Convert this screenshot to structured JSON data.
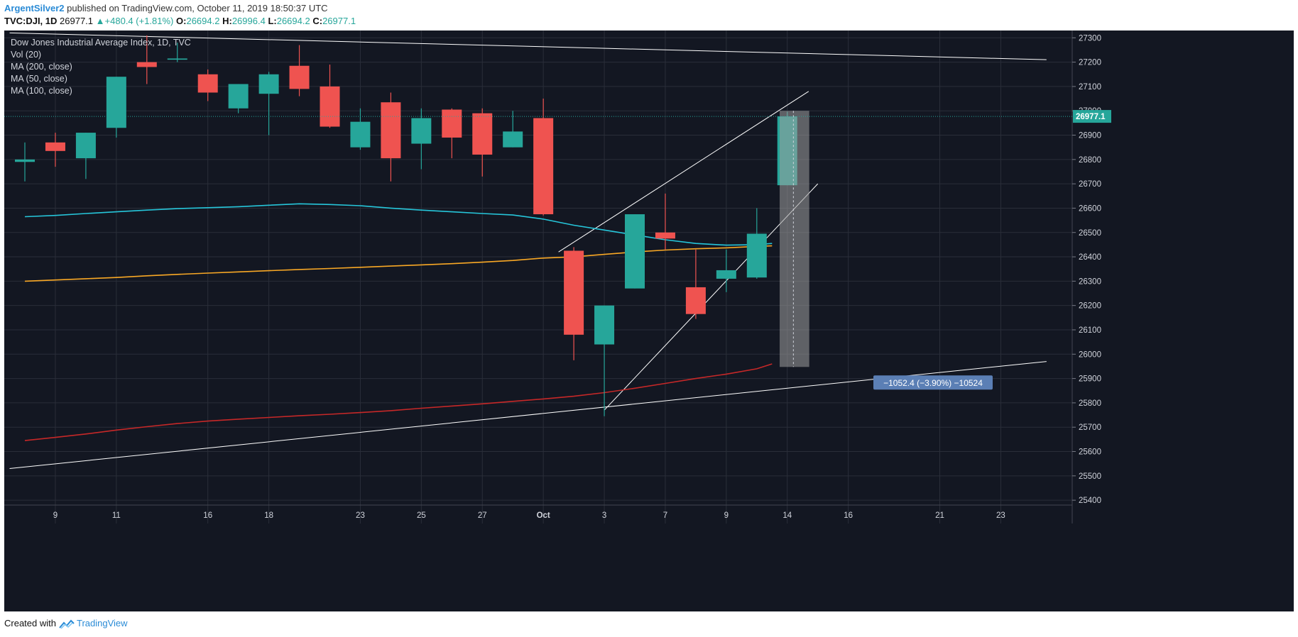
{
  "header": {
    "author": "ArgentSilver2",
    "published": "published on TradingView.com, October 11, 2019 18:50:37 UTC",
    "symbol": "TVC:DJI, 1D",
    "last": "26977.1",
    "change": "+480.4 (+1.81%)",
    "o_label": "O:",
    "o": "26694.2",
    "h_label": "H:",
    "h": "26996.4",
    "l_label": "L:",
    "l": "26694.2",
    "c_label": "C:",
    "c": "26977.1"
  },
  "legend": {
    "title": "Dow Jones Industrial Average Index, 1D, TVC",
    "items": [
      "Vol (20)",
      "MA (200, close)",
      "MA (50, close)",
      "MA (100, close)"
    ]
  },
  "footer": {
    "created": "Created with",
    "brand": "TradingView"
  },
  "colors": {
    "background": "#131722",
    "grid": "#2a2e39",
    "up": "#26a69a",
    "down": "#ef5350",
    "ma50": "#26c6da",
    "ma100": "#f9a825",
    "ma200": "#c62828",
    "trendline": "#ffffff",
    "axis_text": "#d1d4dc"
  },
  "chart_data": {
    "type": "candlestick",
    "title": "Dow Jones Industrial Average Index, 1D, TVC",
    "ylim": [
      25380,
      27330
    ],
    "y_ticks": [
      25400,
      25500,
      25600,
      25700,
      25800,
      25900,
      26000,
      26100,
      26200,
      26300,
      26400,
      26500,
      26600,
      26700,
      26800,
      26900,
      27000,
      27100,
      27200,
      27300
    ],
    "x_ticks": [
      {
        "i": 1,
        "label": "9"
      },
      {
        "i": 3,
        "label": "11"
      },
      {
        "i": 6,
        "label": "16"
      },
      {
        "i": 8,
        "label": "18"
      },
      {
        "i": 11,
        "label": "23"
      },
      {
        "i": 13,
        "label": "25"
      },
      {
        "i": 15,
        "label": "27"
      },
      {
        "i": 17,
        "label": "Oct"
      },
      {
        "i": 19,
        "label": "3"
      },
      {
        "i": 21,
        "label": "7"
      },
      {
        "i": 23,
        "label": "9"
      },
      {
        "i": 25,
        "label": "14"
      },
      {
        "i": 27,
        "label": "16"
      },
      {
        "i": 30,
        "label": "21"
      },
      {
        "i": 32,
        "label": "23"
      }
    ],
    "candles": [
      {
        "i": 0,
        "o": 26790,
        "h": 26870,
        "l": 26710,
        "c": 26800
      },
      {
        "i": 1,
        "o": 26870,
        "h": 26910,
        "l": 26770,
        "c": 26835
      },
      {
        "i": 2,
        "o": 26805,
        "h": 26910,
        "l": 26720,
        "c": 26910
      },
      {
        "i": 3,
        "o": 26930,
        "h": 27140,
        "l": 26890,
        "c": 27140
      },
      {
        "i": 4,
        "o": 27200,
        "h": 27310,
        "l": 27110,
        "c": 27180
      },
      {
        "i": 5,
        "o": 27210,
        "h": 27280,
        "l": 27200,
        "c": 27215
      },
      {
        "i": 6,
        "o": 27150,
        "h": 27170,
        "l": 27040,
        "c": 27075
      },
      {
        "i": 7,
        "o": 27010,
        "h": 27110,
        "l": 26990,
        "c": 27110
      },
      {
        "i": 8,
        "o": 27070,
        "h": 27160,
        "l": 26900,
        "c": 27150
      },
      {
        "i": 9,
        "o": 27185,
        "h": 27270,
        "l": 27060,
        "c": 27090
      },
      {
        "i": 10,
        "o": 27100,
        "h": 27190,
        "l": 26930,
        "c": 26935
      },
      {
        "i": 11,
        "o": 26850,
        "h": 27010,
        "l": 26840,
        "c": 26955
      },
      {
        "i": 12,
        "o": 27035,
        "h": 27075,
        "l": 26710,
        "c": 26805
      },
      {
        "i": 13,
        "o": 26865,
        "h": 27010,
        "l": 26760,
        "c": 26970
      },
      {
        "i": 14,
        "o": 27005,
        "h": 27010,
        "l": 26805,
        "c": 26890
      },
      {
        "i": 15,
        "o": 26990,
        "h": 27010,
        "l": 26730,
        "c": 26820
      },
      {
        "i": 16,
        "o": 26850,
        "h": 27000,
        "l": 26850,
        "c": 26915
      },
      {
        "i": 17,
        "o": 26970,
        "h": 27050,
        "l": 26570,
        "c": 26575
      },
      {
        "i": 18,
        "o": 26425,
        "h": 26440,
        "l": 25975,
        "c": 26080
      },
      {
        "i": 19,
        "o": 26040,
        "h": 26200,
        "l": 25745,
        "c": 26200
      },
      {
        "i": 20,
        "o": 26270,
        "h": 26575,
        "l": 26270,
        "c": 26575
      },
      {
        "i": 21,
        "o": 26500,
        "h": 26660,
        "l": 26430,
        "c": 26475
      },
      {
        "i": 22,
        "o": 26275,
        "h": 26430,
        "l": 26145,
        "c": 26165
      },
      {
        "i": 23,
        "o": 26310,
        "h": 26430,
        "l": 26255,
        "c": 26345
      },
      {
        "i": 24,
        "o": 26315,
        "h": 26600,
        "l": 26310,
        "c": 26495
      },
      {
        "i": 25,
        "o": 26694.2,
        "h": 26996.4,
        "l": 26694.2,
        "c": 26977.1
      }
    ],
    "series": [
      {
        "name": "MA (50, close)",
        "color": "#26c6da",
        "points": [
          [
            0,
            26565
          ],
          [
            1,
            26570
          ],
          [
            2,
            26578
          ],
          [
            3,
            26585
          ],
          [
            4,
            26592
          ],
          [
            5,
            26598
          ],
          [
            6,
            26602
          ],
          [
            7,
            26606
          ],
          [
            8,
            26612
          ],
          [
            9,
            26618
          ],
          [
            10,
            26615
          ],
          [
            11,
            26610
          ],
          [
            12,
            26600
          ],
          [
            13,
            26592
          ],
          [
            14,
            26585
          ],
          [
            15,
            26578
          ],
          [
            16,
            26572
          ],
          [
            17,
            26555
          ],
          [
            18,
            26530
          ],
          [
            19,
            26510
          ],
          [
            20,
            26490
          ],
          [
            21,
            26470
          ],
          [
            22,
            26455
          ],
          [
            23,
            26448
          ],
          [
            24,
            26450
          ],
          [
            24.5,
            26455
          ]
        ]
      },
      {
        "name": "MA (100, close)",
        "color": "#f9a825",
        "points": [
          [
            0,
            26300
          ],
          [
            1,
            26305
          ],
          [
            2,
            26310
          ],
          [
            3,
            26315
          ],
          [
            4,
            26322
          ],
          [
            5,
            26328
          ],
          [
            6,
            26333
          ],
          [
            7,
            26338
          ],
          [
            8,
            26343
          ],
          [
            9,
            26348
          ],
          [
            10,
            26352
          ],
          [
            11,
            26357
          ],
          [
            12,
            26362
          ],
          [
            13,
            26367
          ],
          [
            14,
            26372
          ],
          [
            15,
            26378
          ],
          [
            16,
            26385
          ],
          [
            17,
            26395
          ],
          [
            18,
            26400
          ],
          [
            19,
            26410
          ],
          [
            20,
            26420
          ],
          [
            21,
            26428
          ],
          [
            22,
            26433
          ],
          [
            23,
            26437
          ],
          [
            24,
            26443
          ],
          [
            24.5,
            26445
          ]
        ]
      },
      {
        "name": "MA (200, close)",
        "color": "#c62828",
        "points": [
          [
            0,
            25645
          ],
          [
            1,
            25658
          ],
          [
            2,
            25672
          ],
          [
            3,
            25688
          ],
          [
            4,
            25702
          ],
          [
            5,
            25715
          ],
          [
            6,
            25725
          ],
          [
            7,
            25733
          ],
          [
            8,
            25740
          ],
          [
            9,
            25747
          ],
          [
            10,
            25753
          ],
          [
            11,
            25760
          ],
          [
            12,
            25768
          ],
          [
            13,
            25778
          ],
          [
            14,
            25787
          ],
          [
            15,
            25796
          ],
          [
            16,
            25806
          ],
          [
            17,
            25816
          ],
          [
            18,
            25827
          ],
          [
            19,
            25842
          ],
          [
            20,
            25860
          ],
          [
            21,
            25880
          ],
          [
            22,
            25900
          ],
          [
            23,
            25918
          ],
          [
            24,
            25940
          ],
          [
            24.5,
            25960
          ]
        ]
      }
    ],
    "current_price": {
      "value": 26977.1,
      "label": "26977.1"
    },
    "measure": {
      "from": 27000,
      "to": 25947.6,
      "label": "−1052.4 (−3.90%) −10524"
    },
    "hidden_price_label": "27000.0"
  }
}
